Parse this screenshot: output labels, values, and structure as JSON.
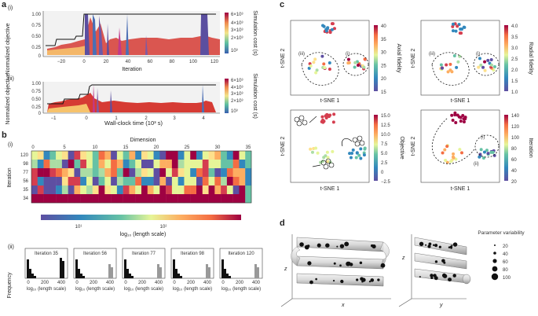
{
  "panel_labels": {
    "a": "a",
    "b": "b",
    "c": "c",
    "d": "d"
  },
  "panel_a": {
    "sub_i": "(i)",
    "sub_ii": "(ii)",
    "ylabel": "Normalized objective",
    "xlabel_i": "Iteration",
    "xlabel_ii": "Wall-clock time (10³ s)",
    "colorbar_label": "Simulation cost (s)",
    "colorbar_ticks": [
      "6×10³",
      "4×10³",
      "3×10³",
      "2×10³",
      "10³"
    ],
    "yticks": [
      "1.00",
      "0.75",
      "0.50",
      "0.25",
      "0"
    ],
    "xticks_i": [
      "−20",
      "0",
      "20",
      "40",
      "60",
      "80",
      "100",
      "120"
    ],
    "xticks_ii": [
      "−1",
      "0",
      "1",
      "2",
      "3",
      "4"
    ]
  },
  "panel_b": {
    "sub_i": "(i)",
    "sub_ii": "(ii)",
    "dimension_label": "Dimension",
    "iteration_label": "Iteration",
    "dim_ticks": [
      "0",
      "5",
      "10",
      "15",
      "20",
      "25",
      "30",
      "35"
    ],
    "iter_ticks": [
      "120",
      "98",
      "77",
      "56",
      "35",
      "34"
    ],
    "colorbar_ticks": [
      "10¹",
      "10²"
    ],
    "colorbar_label": "log₁₀ (length scale)",
    "hist_ylabel": "Frequency",
    "hist_xlabel": "log₁₀ (length scale)",
    "hist_xticks": [
      "0",
      "200",
      "400"
    ],
    "hist_titles": [
      "Iteration 35",
      "Iteration 56",
      "Iteration 77",
      "Iteration 98",
      "Iteration 120"
    ]
  },
  "panel_c": {
    "xlabel": "t-SNE 1",
    "ylabel": "t-SNE 2",
    "colorbars": [
      {
        "label": "Axial fidelity",
        "ticks": [
          "40",
          "35",
          "30",
          "25",
          "20",
          "15"
        ]
      },
      {
        "label": "Radial fidelity",
        "ticks": [
          "4.0",
          "3.5",
          "3.0",
          "2.5",
          "2.0",
          "1.5",
          "1.0"
        ]
      },
      {
        "label": "Objective",
        "ticks": [
          "15.0",
          "12.5",
          "10.0",
          "7.5",
          "5.0",
          "2.5",
          "0",
          "−2.5"
        ]
      },
      {
        "label": "Iteration",
        "ticks": [
          "140",
          "120",
          "100",
          "80",
          "60",
          "40",
          "20"
        ]
      }
    ],
    "annotations": {
      "iii": "(iii)",
      "i": "(i)",
      "ii": "(ii)"
    }
  },
  "panel_d": {
    "axis_z": "z",
    "axis_x": "x",
    "axis_y": "y",
    "legend_title": "Parameter variability",
    "legend_values": [
      "20",
      "40",
      "60",
      "80",
      "100"
    ]
  }
}
